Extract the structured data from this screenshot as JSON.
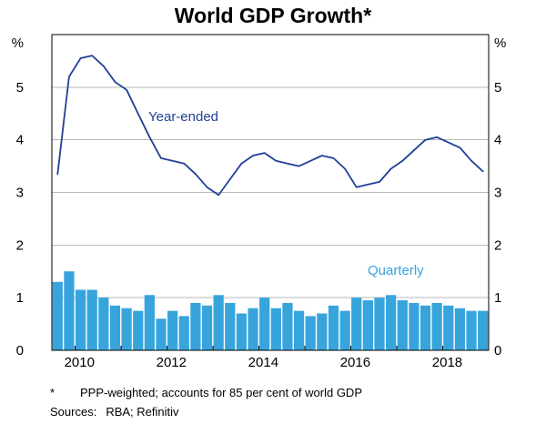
{
  "page": {
    "background": "#ffffff"
  },
  "chart_data": {
    "type": "bar+line",
    "title": "World GDP Growth*",
    "unit_label": "%",
    "ylim": [
      0,
      6
    ],
    "y_ticks": [
      0,
      1,
      2,
      3,
      4,
      5
    ],
    "x_start": 2009.5,
    "x_end": 2019.0,
    "x_tick_years": [
      2010,
      2012,
      2014,
      2016,
      2018
    ],
    "grid": "horizontal",
    "grid_color": "#b9b9b9",
    "frame_color": "#000000",
    "quarters": [
      "2009Q3",
      "2009Q4",
      "2010Q1",
      "2010Q2",
      "2010Q3",
      "2010Q4",
      "2011Q1",
      "2011Q2",
      "2011Q3",
      "2011Q4",
      "2012Q1",
      "2012Q2",
      "2012Q3",
      "2012Q4",
      "2013Q1",
      "2013Q2",
      "2013Q3",
      "2013Q4",
      "2014Q1",
      "2014Q2",
      "2014Q3",
      "2014Q4",
      "2015Q1",
      "2015Q2",
      "2015Q3",
      "2015Q4",
      "2016Q1",
      "2016Q2",
      "2016Q3",
      "2016Q4",
      "2017Q1",
      "2017Q2",
      "2017Q3",
      "2017Q4",
      "2018Q1",
      "2018Q2",
      "2018Q3",
      "2018Q4"
    ],
    "series": [
      {
        "name": "Year-ended",
        "type": "line",
        "color": "#203f97",
        "values": [
          3.35,
          5.2,
          5.55,
          5.6,
          5.4,
          5.1,
          4.95,
          4.5,
          4.05,
          3.65,
          3.6,
          3.55,
          3.35,
          3.1,
          2.95,
          3.25,
          3.55,
          3.7,
          3.75,
          3.6,
          3.55,
          3.5,
          3.6,
          3.7,
          3.65,
          3.45,
          3.1,
          3.15,
          3.2,
          3.45,
          3.6,
          3.8,
          4.0,
          4.05,
          3.95,
          3.85,
          3.6,
          3.4
        ]
      },
      {
        "name": "Quarterly",
        "type": "bar",
        "color": "#37a4dc",
        "values": [
          1.3,
          1.5,
          1.15,
          1.15,
          1.0,
          0.85,
          0.8,
          0.75,
          1.05,
          0.6,
          0.75,
          0.65,
          0.9,
          0.85,
          1.05,
          0.9,
          0.7,
          0.8,
          1.0,
          0.8,
          0.9,
          0.75,
          0.65,
          0.7,
          0.85,
          0.75,
          1.0,
          0.95,
          1.0,
          1.05,
          0.95,
          0.9,
          0.85,
          0.9,
          0.85,
          0.8,
          0.75,
          0.75
        ]
      }
    ]
  },
  "footnotes": {
    "marker": "*",
    "note": "PPP-weighted; accounts for 85 per cent of world GDP",
    "sources_label": "Sources:",
    "sources": "RBA; Refinitiv"
  }
}
